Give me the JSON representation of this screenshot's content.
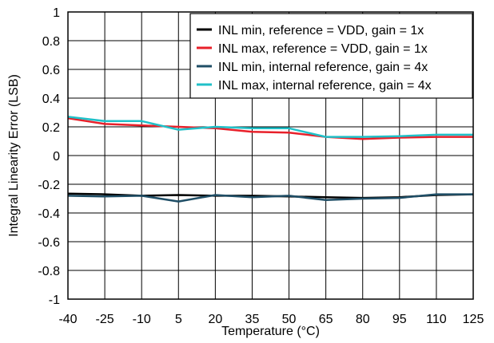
{
  "chart_data": {
    "type": "line",
    "xlabel": "Temperature (°C)",
    "ylabel": "Integral Linearity Error (LSB)",
    "x": [
      -40,
      -25,
      -10,
      5,
      20,
      35,
      50,
      65,
      80,
      95,
      110,
      125
    ],
    "x_ticks": [
      "-40",
      "-25",
      "-10",
      "5",
      "20",
      "35",
      "50",
      "65",
      "80",
      "95",
      "110",
      "125"
    ],
    "y_ticks": [
      "1",
      "0.8",
      "0.6",
      "0.4",
      "0.2",
      "0",
      "-0.2",
      "-0.4",
      "-0.6",
      "-0.8",
      "-1"
    ],
    "y_tick_values": [
      1,
      0.8,
      0.6,
      0.4,
      0.2,
      0,
      -0.2,
      -0.4,
      -0.6,
      -0.8,
      -1
    ],
    "xlim": [
      -40,
      125
    ],
    "ylim": [
      -1,
      1
    ],
    "grid": true,
    "legend_position": "top-right",
    "series": [
      {
        "name": "INL min, reference = VDD, gain = 1x",
        "color": "#000000",
        "values": [
          -0.265,
          -0.27,
          -0.28,
          -0.275,
          -0.28,
          -0.28,
          -0.285,
          -0.29,
          -0.295,
          -0.29,
          -0.275,
          -0.27
        ]
      },
      {
        "name": "INL max, reference = VDD, gain = 1x",
        "color": "#e8202a",
        "values": [
          0.26,
          0.22,
          0.21,
          0.2,
          0.19,
          0.165,
          0.16,
          0.13,
          0.115,
          0.125,
          0.13,
          0.13
        ]
      },
      {
        "name": "INL min, internal reference, gain = 4x",
        "color": "#1f4e66",
        "values": [
          -0.28,
          -0.285,
          -0.28,
          -0.32,
          -0.275,
          -0.29,
          -0.28,
          -0.31,
          -0.3,
          -0.295,
          -0.27,
          -0.27
        ]
      },
      {
        "name": "INL max, internal reference, gain = 4x",
        "color": "#20c0c8",
        "values": [
          0.27,
          0.24,
          0.24,
          0.18,
          0.2,
          0.19,
          0.19,
          0.13,
          0.13,
          0.135,
          0.145,
          0.145
        ]
      }
    ]
  }
}
